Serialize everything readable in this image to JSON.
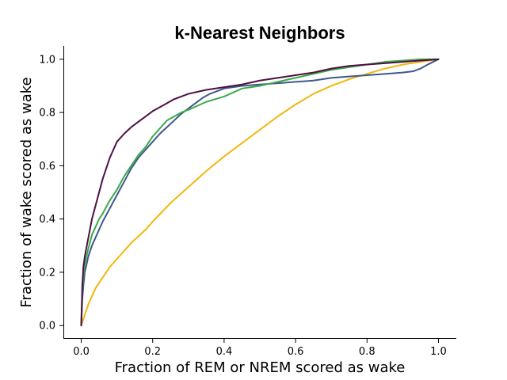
{
  "chart_data": {
    "type": "line",
    "title": "k-Nearest Neighbors",
    "xlabel": "Fraction of REM or NREM scored as wake",
    "ylabel": "Fraction of wake scored as wake",
    "xlim": [
      -0.05,
      1.05
    ],
    "ylim": [
      -0.05,
      1.05
    ],
    "xticks": [
      "0.0",
      "0.2",
      "0.4",
      "0.6",
      "0.8",
      "1.0"
    ],
    "yticks": [
      "0.0",
      "0.2",
      "0.4",
      "0.6",
      "0.8",
      "1.0"
    ],
    "grid": false,
    "legend": "none",
    "series": [
      {
        "color": "#f2b70d",
        "points": [
          [
            0,
            0
          ],
          [
            0.005,
            0.02
          ],
          [
            0.01,
            0.04
          ],
          [
            0.02,
            0.08
          ],
          [
            0.03,
            0.11
          ],
          [
            0.04,
            0.14
          ],
          [
            0.05,
            0.16
          ],
          [
            0.06,
            0.18
          ],
          [
            0.08,
            0.22
          ],
          [
            0.1,
            0.25
          ],
          [
            0.12,
            0.28
          ],
          [
            0.14,
            0.31
          ],
          [
            0.16,
            0.335
          ],
          [
            0.18,
            0.36
          ],
          [
            0.2,
            0.39
          ],
          [
            0.25,
            0.46
          ],
          [
            0.3,
            0.52
          ],
          [
            0.35,
            0.58
          ],
          [
            0.4,
            0.635
          ],
          [
            0.45,
            0.685
          ],
          [
            0.5,
            0.735
          ],
          [
            0.55,
            0.785
          ],
          [
            0.6,
            0.83
          ],
          [
            0.65,
            0.87
          ],
          [
            0.7,
            0.9
          ],
          [
            0.75,
            0.925
          ],
          [
            0.8,
            0.945
          ],
          [
            0.85,
            0.965
          ],
          [
            0.9,
            0.98
          ],
          [
            0.95,
            0.99
          ],
          [
            1.0,
            1.0
          ]
        ]
      },
      {
        "color": "#3d5a8a",
        "points": [
          [
            0,
            0
          ],
          [
            0.003,
            0.1
          ],
          [
            0.006,
            0.15
          ],
          [
            0.01,
            0.2
          ],
          [
            0.02,
            0.26
          ],
          [
            0.03,
            0.3
          ],
          [
            0.04,
            0.33
          ],
          [
            0.05,
            0.36
          ],
          [
            0.06,
            0.39
          ],
          [
            0.08,
            0.44
          ],
          [
            0.1,
            0.49
          ],
          [
            0.12,
            0.54
          ],
          [
            0.14,
            0.59
          ],
          [
            0.16,
            0.63
          ],
          [
            0.18,
            0.66
          ],
          [
            0.2,
            0.69
          ],
          [
            0.22,
            0.72
          ],
          [
            0.24,
            0.745
          ],
          [
            0.26,
            0.77
          ],
          [
            0.28,
            0.795
          ],
          [
            0.3,
            0.815
          ],
          [
            0.32,
            0.835
          ],
          [
            0.34,
            0.855
          ],
          [
            0.36,
            0.87
          ],
          [
            0.38,
            0.88
          ],
          [
            0.4,
            0.89
          ],
          [
            0.45,
            0.9
          ],
          [
            0.5,
            0.905
          ],
          [
            0.55,
            0.91
          ],
          [
            0.6,
            0.915
          ],
          [
            0.65,
            0.92
          ],
          [
            0.7,
            0.93
          ],
          [
            0.75,
            0.935
          ],
          [
            0.8,
            0.94
          ],
          [
            0.85,
            0.945
          ],
          [
            0.9,
            0.95
          ],
          [
            0.93,
            0.955
          ],
          [
            0.95,
            0.965
          ],
          [
            0.97,
            0.98
          ],
          [
            1.0,
            1.0
          ]
        ]
      },
      {
        "color": "#3caa49",
        "points": [
          [
            0,
            0
          ],
          [
            0.003,
            0.14
          ],
          [
            0.006,
            0.19
          ],
          [
            0.01,
            0.23
          ],
          [
            0.02,
            0.29
          ],
          [
            0.03,
            0.34
          ],
          [
            0.04,
            0.37
          ],
          [
            0.05,
            0.4
          ],
          [
            0.06,
            0.42
          ],
          [
            0.08,
            0.47
          ],
          [
            0.1,
            0.51
          ],
          [
            0.12,
            0.56
          ],
          [
            0.14,
            0.6
          ],
          [
            0.16,
            0.64
          ],
          [
            0.18,
            0.67
          ],
          [
            0.2,
            0.71
          ],
          [
            0.22,
            0.74
          ],
          [
            0.24,
            0.77
          ],
          [
            0.26,
            0.785
          ],
          [
            0.28,
            0.8
          ],
          [
            0.3,
            0.81
          ],
          [
            0.35,
            0.84
          ],
          [
            0.4,
            0.86
          ],
          [
            0.45,
            0.89
          ],
          [
            0.5,
            0.9
          ],
          [
            0.55,
            0.915
          ],
          [
            0.6,
            0.93
          ],
          [
            0.65,
            0.945
          ],
          [
            0.7,
            0.96
          ],
          [
            0.75,
            0.97
          ],
          [
            0.8,
            0.98
          ],
          [
            0.85,
            0.99
          ],
          [
            0.9,
            0.995
          ],
          [
            0.95,
            1.0
          ],
          [
            1.0,
            1.0
          ]
        ]
      },
      {
        "color": "#4f1043",
        "points": [
          [
            0,
            0
          ],
          [
            0.003,
            0.15
          ],
          [
            0.006,
            0.22
          ],
          [
            0.01,
            0.26
          ],
          [
            0.02,
            0.33
          ],
          [
            0.03,
            0.4
          ],
          [
            0.04,
            0.45
          ],
          [
            0.05,
            0.5
          ],
          [
            0.06,
            0.55
          ],
          [
            0.08,
            0.63
          ],
          [
            0.1,
            0.69
          ],
          [
            0.12,
            0.72
          ],
          [
            0.14,
            0.745
          ],
          [
            0.16,
            0.765
          ],
          [
            0.18,
            0.785
          ],
          [
            0.2,
            0.805
          ],
          [
            0.22,
            0.82
          ],
          [
            0.24,
            0.835
          ],
          [
            0.26,
            0.85
          ],
          [
            0.28,
            0.86
          ],
          [
            0.3,
            0.87
          ],
          [
            0.35,
            0.885
          ],
          [
            0.4,
            0.895
          ],
          [
            0.45,
            0.905
          ],
          [
            0.5,
            0.92
          ],
          [
            0.55,
            0.93
          ],
          [
            0.6,
            0.94
          ],
          [
            0.65,
            0.95
          ],
          [
            0.7,
            0.965
          ],
          [
            0.75,
            0.975
          ],
          [
            0.8,
            0.98
          ],
          [
            0.85,
            0.985
          ],
          [
            0.9,
            0.99
          ],
          [
            0.95,
            0.995
          ],
          [
            1.0,
            1.0
          ]
        ]
      }
    ]
  }
}
